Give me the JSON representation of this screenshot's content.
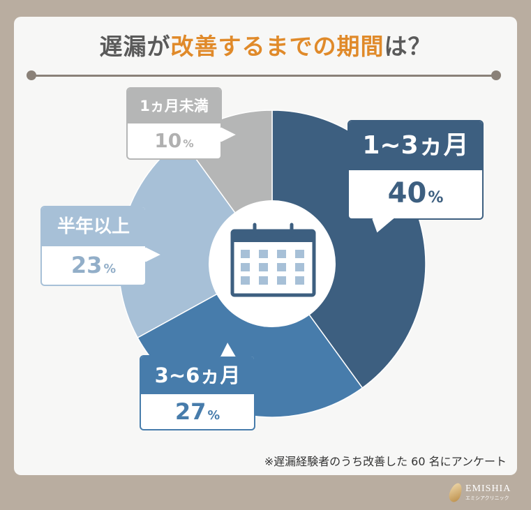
{
  "title": {
    "part1": "遅漏が",
    "accent": "改善するまでの期間",
    "part2": "は？"
  },
  "chart_data": {
    "type": "pie",
    "title": "遅漏が改善するまでの期間は？",
    "categories": [
      "1~3ヵ月",
      "3~6ヵ月",
      "半年以上",
      "1ヵ月未満"
    ],
    "values": [
      40,
      27,
      23,
      10
    ],
    "unit": "%",
    "colors": [
      "#3d5f80",
      "#477cab",
      "#a7c0d7",
      "#b5b6b6"
    ]
  },
  "labels": [
    {
      "head": "1~3ヵ月",
      "pct": "40",
      "unit": "%",
      "color": "#3d5f80"
    },
    {
      "head": "3~6ヵ月",
      "pct": "27",
      "unit": "%",
      "color": "#477cab"
    },
    {
      "head": "半年以上",
      "pct": "23",
      "unit": "%",
      "color": "#92aec8"
    },
    {
      "head": "1ヵ月未満",
      "pct": "10",
      "unit": "%",
      "color": "#a5a5a5"
    }
  ],
  "center_icon": "calendar-icon",
  "footnote": "※遅漏経験者のうち改善した 60 名にアンケート",
  "brand": {
    "name": "EMISHIA",
    "sub": "エミシアクリニック"
  }
}
